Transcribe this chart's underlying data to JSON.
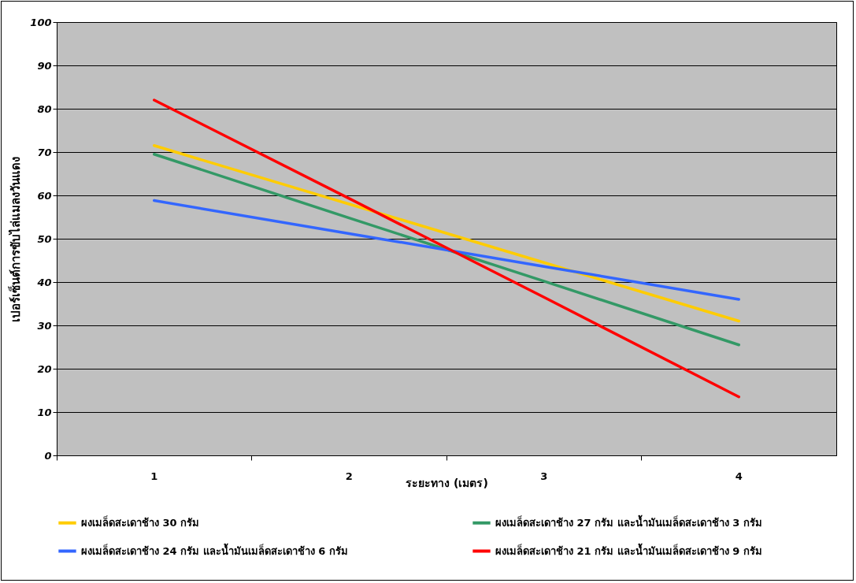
{
  "chart_data": {
    "type": "line",
    "xlabel": "ระยะทาง  (เมตร)",
    "ylabel": "เปอร์เซ็นต์การขับไล่แมลงวันแดง",
    "categories": [
      "1",
      "2",
      "3",
      "4"
    ],
    "series": [
      {
        "name": "ผงเมล็ดสะเดาช้าง 30 กรัม",
        "color": "#ffcc00",
        "values": [
          71.5,
          58,
          44.5,
          31
        ]
      },
      {
        "name": "ผงเมล็ดสะเดาช้าง 27 กรัม และน้ำมันเมล็ดสะเดาช้าง 3 กรัม",
        "color": "#339966",
        "values": [
          69.5,
          54.8,
          40.2,
          25.5
        ]
      },
      {
        "name": "ผงเมล็ดสะเดาช้าง 24 กรัม และน้ำมันเมล็ดสะเดาช้าง 6 กรัม",
        "color": "#3366ff",
        "values": [
          58.8,
          51.2,
          43.6,
          36
        ]
      },
      {
        "name": "ผงเมล็ดสะเดาช้าง 21 กรัม และน้ำมันเมล็ดสะเดาช้าง 9 กรัม",
        "color": "#ff0000",
        "values": [
          82,
          59.3,
          36.5,
          13.5
        ]
      }
    ],
    "ylim": [
      0,
      100
    ],
    "yticks": [
      0,
      10,
      20,
      30,
      40,
      50,
      60,
      70,
      80,
      90,
      100
    ],
    "grid": "y",
    "legend": "bottom",
    "marker": "none",
    "line_style": "solid"
  }
}
